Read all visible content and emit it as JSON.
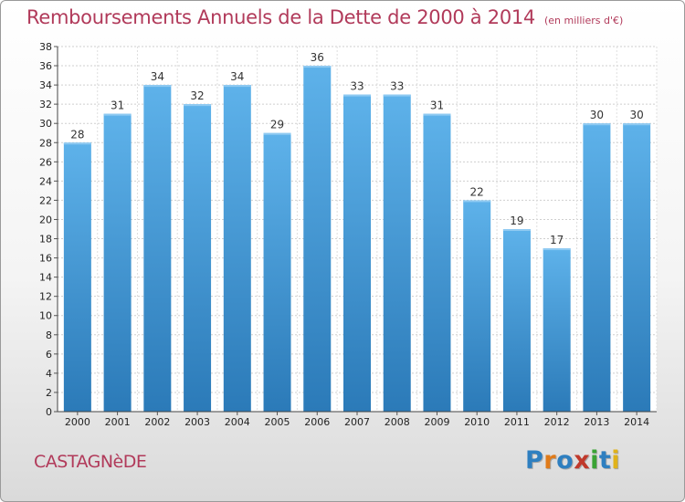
{
  "chart_data": {
    "type": "bar",
    "title": "Remboursements Annuels de la Dette de 2000 à 2014",
    "unit_note": "(en milliers d'€)",
    "categories": [
      "2000",
      "2001",
      "2002",
      "2003",
      "2004",
      "2005",
      "2006",
      "2007",
      "2008",
      "2009",
      "2010",
      "2011",
      "2012",
      "2013",
      "2014"
    ],
    "values": [
      28,
      31,
      34,
      32,
      34,
      29,
      36,
      33,
      33,
      31,
      22,
      19,
      17,
      30,
      30
    ],
    "ylim": [
      0,
      38
    ],
    "yticks": [
      0,
      2,
      4,
      6,
      8,
      10,
      12,
      14,
      16,
      18,
      20,
      22,
      24,
      26,
      28,
      30,
      32,
      34,
      36,
      38
    ],
    "grid": true,
    "xlabel": "",
    "ylabel": ""
  },
  "commune": "CASTAGNèDE",
  "logo": {
    "text": "Proxiti",
    "letters": [
      "P",
      "r",
      "o",
      "x",
      "i",
      "t",
      "i"
    ],
    "colors": [
      "#2e7fc0",
      "#e07b1a",
      "#2e7fc0",
      "#c0392b",
      "#3aa335",
      "#2e7fc0",
      "#e0b21a"
    ]
  },
  "colors": {
    "title": "#b13a5a",
    "bar_top": "#5eb2ea",
    "bar_bottom": "#2b7ab8"
  }
}
